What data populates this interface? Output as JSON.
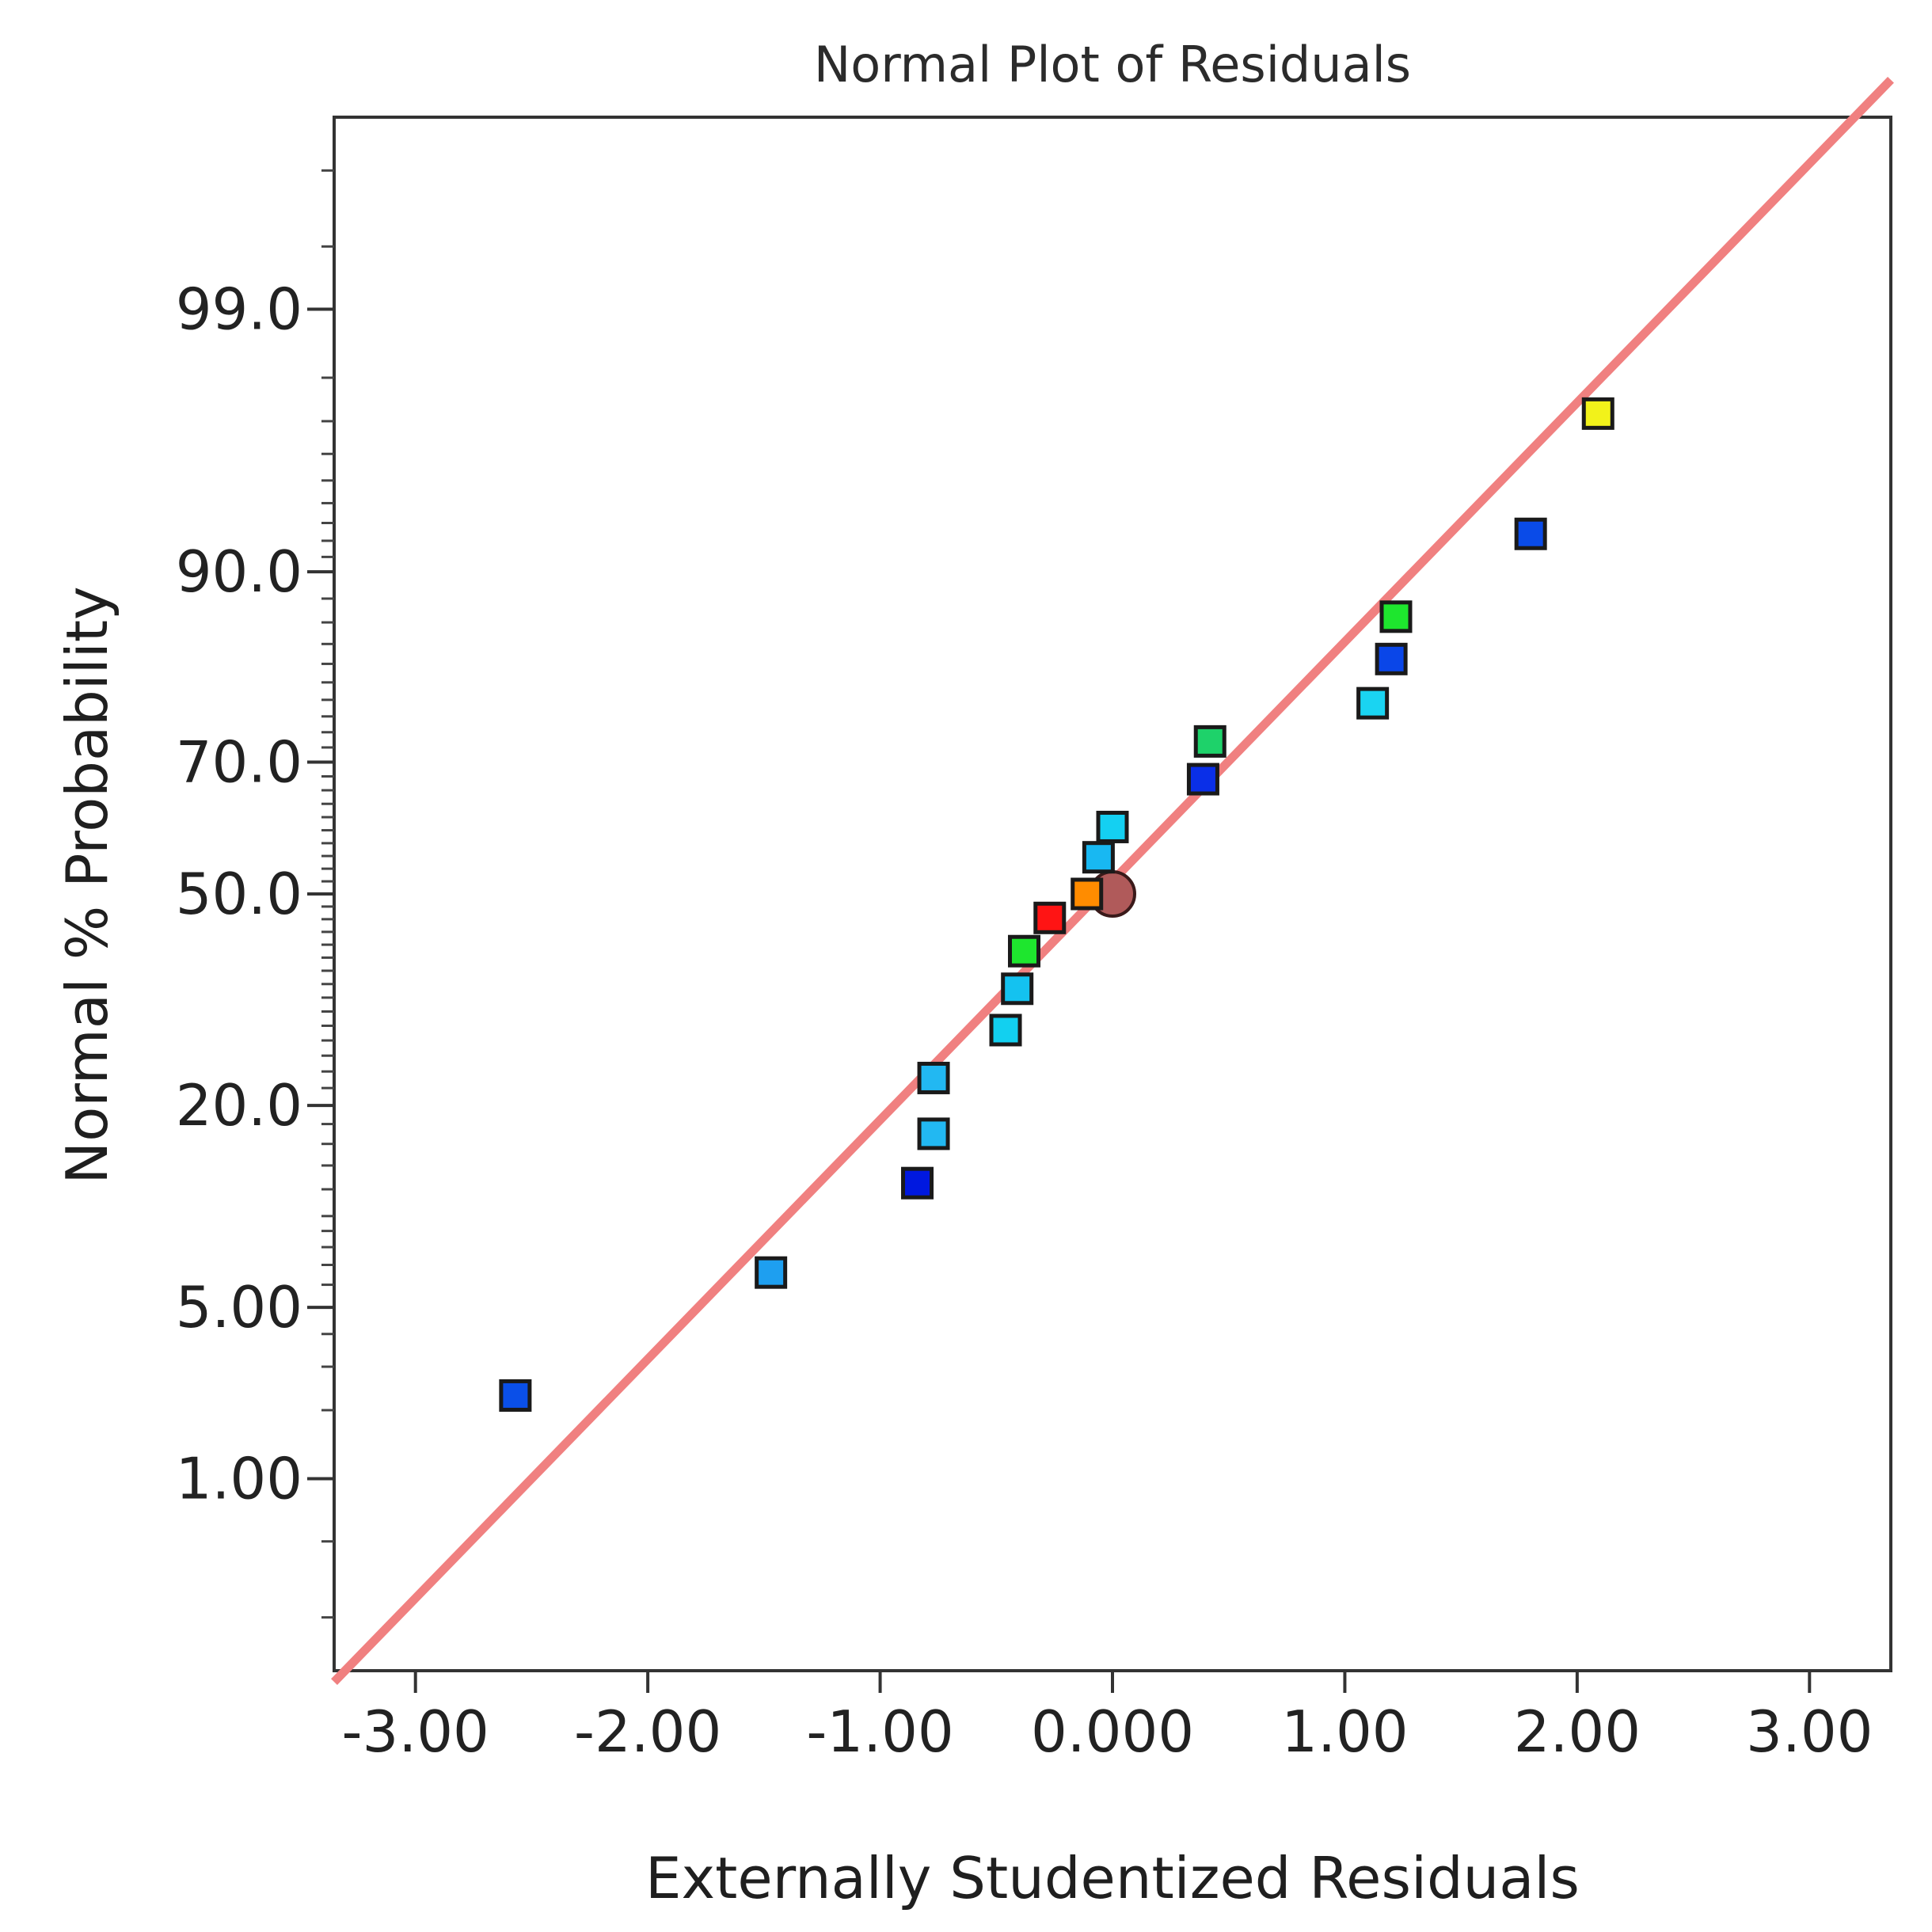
{
  "chart_data": {
    "type": "scatter",
    "title": "Normal Plot of Residuals",
    "xlabel": "Externally Studentized Residuals",
    "ylabel": "Normal % Probability",
    "xlim": [
      -3.35,
      3.35
    ],
    "ylim": [
      0.1,
      99.9
    ],
    "y_scale": "normal-probability",
    "grid": false,
    "x_ticks": [
      {
        "value": -3,
        "label": "-3.00"
      },
      {
        "value": -2,
        "label": "-2.00"
      },
      {
        "value": -1,
        "label": "-1.00"
      },
      {
        "value": 0,
        "label": "0.000"
      },
      {
        "value": 1,
        "label": "1.00"
      },
      {
        "value": 2,
        "label": "2.00"
      },
      {
        "value": 3,
        "label": "3.00"
      }
    ],
    "y_ticks": [
      {
        "value": 1,
        "label": "1.00"
      },
      {
        "value": 5,
        "label": "5.00"
      },
      {
        "value": 20,
        "label": "20.0"
      },
      {
        "value": 50,
        "label": "50.0"
      },
      {
        "value": 70,
        "label": "70.0"
      },
      {
        "value": 90,
        "label": "90.0"
      },
      {
        "value": 99,
        "label": "99.0"
      }
    ],
    "reference_line": {
      "color": "#f08080",
      "points": [
        {
          "x": -3.35,
          "p": 0.086
        },
        {
          "x": 3.35,
          "p": 99.94
        }
      ]
    },
    "center_marker": {
      "x": 0.0,
      "p": 50.0,
      "color": "#b05a5a"
    },
    "series": [
      {
        "name": "Residuals",
        "points": [
          {
            "x": -2.57,
            "p": 2.3,
            "color": "#0a4fe8"
          },
          {
            "x": -1.47,
            "p": 6.6,
            "color": "#1e9ff0"
          },
          {
            "x": -0.84,
            "p": 12.5,
            "color": "#0018e0"
          },
          {
            "x": -0.77,
            "p": 17.0,
            "color": "#22b8f2"
          },
          {
            "x": -0.77,
            "p": 23.2,
            "color": "#22b8f2"
          },
          {
            "x": -0.46,
            "p": 29.4,
            "color": "#12d0f0"
          },
          {
            "x": -0.41,
            "p": 35.3,
            "color": "#14c2f0"
          },
          {
            "x": -0.38,
            "p": 41.0,
            "color": "#1ee62e"
          },
          {
            "x": -0.27,
            "p": 46.2,
            "color": "#ff1414"
          },
          {
            "x": -0.11,
            "p": 50.0,
            "color": "#ff8c00"
          },
          {
            "x": -0.06,
            "p": 55.8,
            "color": "#18b8f2"
          },
          {
            "x": 0.0,
            "p": 60.5,
            "color": "#14d0f2"
          },
          {
            "x": 0.39,
            "p": 67.6,
            "color": "#0a2fe8"
          },
          {
            "x": 0.42,
            "p": 72.8,
            "color": "#1ed26a"
          },
          {
            "x": 1.12,
            "p": 77.6,
            "color": "#1ad4f2"
          },
          {
            "x": 1.2,
            "p": 82.5,
            "color": "#0a46e8"
          },
          {
            "x": 1.22,
            "p": 86.5,
            "color": "#1ee62e"
          },
          {
            "x": 1.8,
            "p": 92.4,
            "color": "#0a4be8"
          },
          {
            "x": 2.09,
            "p": 97.2,
            "color": "#f2f21a"
          }
        ]
      }
    ]
  }
}
